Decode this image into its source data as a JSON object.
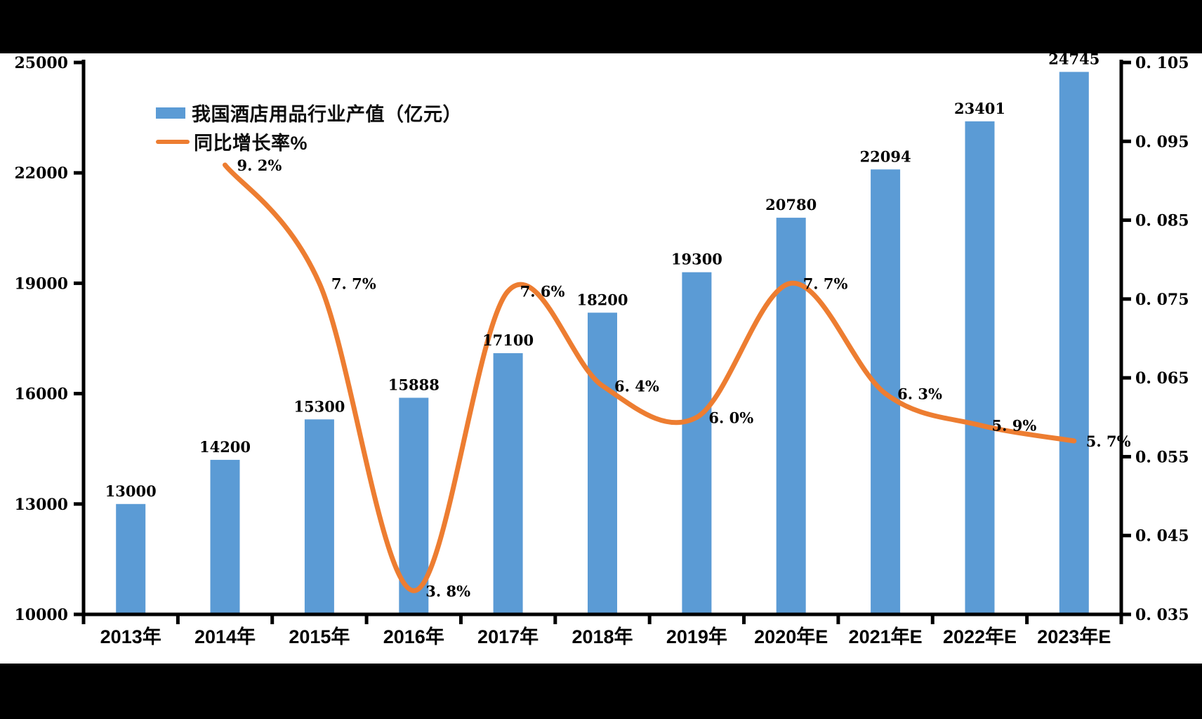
{
  "legend": {
    "bar_label": "我国酒店用品行业产值（亿元）",
    "line_label": "同比增长率%"
  },
  "colors": {
    "bar": "#5B9BD5",
    "line": "#ED7D31",
    "axis": "#000000",
    "text": "#000000",
    "background": "#000000",
    "canvas": "#FFFFFF"
  },
  "chart_data": {
    "type": "combo-bar-line",
    "title": "",
    "categories": [
      "2013年",
      "2014年",
      "2015年",
      "2016年",
      "2017年",
      "2018年",
      "2019年",
      "2020年E",
      "2021年E",
      "2022年E",
      "2023年E"
    ],
    "series": [
      {
        "name": "我国酒店用品行业产值（亿元）",
        "type": "bar",
        "axis": "left",
        "values": [
          13000,
          14200,
          15300,
          15888,
          17100,
          18200,
          19300,
          20780,
          22094,
          23401,
          24745
        ],
        "data_labels": [
          "13000",
          "14200",
          "15300",
          "15888",
          "17100",
          "18200",
          "19300",
          "20780",
          "22094",
          "23401",
          "24745"
        ]
      },
      {
        "name": "同比增长率%",
        "type": "line",
        "axis": "right",
        "smooth": true,
        "values": [
          null,
          0.092,
          0.077,
          0.038,
          0.076,
          0.064,
          0.06,
          0.077,
          0.063,
          0.059,
          0.057
        ],
        "data_labels": [
          null,
          "9.2%",
          "7.7%",
          "3.8%",
          "7.6%",
          "6.4%",
          "6.0%",
          "7.7%",
          "6.3%",
          "5.9%",
          "5.7%"
        ]
      }
    ],
    "left_axis": {
      "min": 10000,
      "max": 25000,
      "tick_labels": [
        "25000",
        "22000",
        "19000",
        "16000",
        "13000",
        "10000"
      ]
    },
    "right_axis": {
      "min": 0.035,
      "max": 0.105,
      "tick_labels": [
        "0.105",
        "0.095",
        "0.085",
        "0.075",
        "0.065",
        "0.055",
        "0.045",
        "0.035"
      ]
    },
    "grid": false,
    "legend_position": "inside-top-left"
  }
}
